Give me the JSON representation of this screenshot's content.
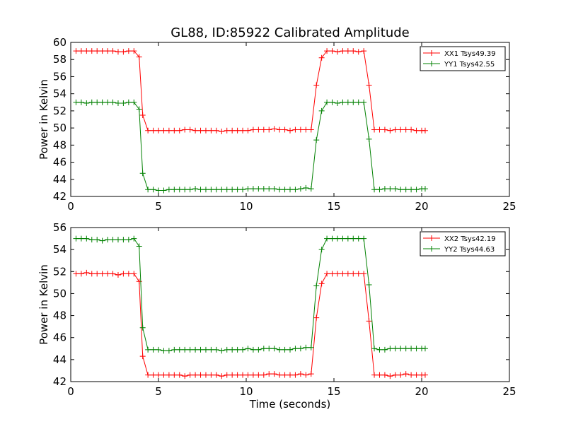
{
  "chart_data": [
    {
      "type": "line",
      "title": "GL88, ID:85922 Calibrated Amplitude",
      "xlabel": "",
      "ylabel": "Power in Kelvin",
      "xlim": [
        0,
        25
      ],
      "ylim": [
        42,
        60
      ],
      "xticks": [
        0,
        5,
        10,
        15,
        20,
        25
      ],
      "yticks": [
        42,
        44,
        46,
        48,
        50,
        52,
        54,
        56,
        58,
        60
      ],
      "legend": "top-right",
      "grid": false,
      "series": [
        {
          "name": "XX1 Tsys49.39",
          "color": "#ff0000",
          "x": [
            0.3,
            0.6,
            0.9,
            1.2,
            1.5,
            1.8,
            2.1,
            2.4,
            2.7,
            3.0,
            3.3,
            3.6,
            3.9,
            4.1,
            4.4,
            4.7,
            5.0,
            5.3,
            5.6,
            5.9,
            6.2,
            6.5,
            6.8,
            7.1,
            7.4,
            7.7,
            8.0,
            8.3,
            8.6,
            8.9,
            9.2,
            9.5,
            9.8,
            10.1,
            10.4,
            10.7,
            11.0,
            11.3,
            11.6,
            11.9,
            12.2,
            12.5,
            12.8,
            13.1,
            13.4,
            13.7,
            14.0,
            14.3,
            14.6,
            14.9,
            15.2,
            15.5,
            15.8,
            16.1,
            16.4,
            16.7,
            17.0,
            17.3,
            17.6,
            17.9,
            18.2,
            18.5,
            18.8,
            19.1,
            19.4,
            19.7,
            20.0,
            20.2
          ],
          "y": [
            59,
            59,
            59,
            59,
            59,
            59,
            59,
            59,
            58.9,
            58.9,
            59,
            59,
            58.3,
            51.5,
            49.7,
            49.7,
            49.7,
            49.7,
            49.7,
            49.7,
            49.7,
            49.8,
            49.8,
            49.7,
            49.7,
            49.7,
            49.7,
            49.7,
            49.6,
            49.7,
            49.7,
            49.7,
            49.7,
            49.7,
            49.8,
            49.8,
            49.8,
            49.8,
            49.9,
            49.8,
            49.8,
            49.7,
            49.8,
            49.8,
            49.8,
            49.8,
            55,
            58.2,
            59,
            59,
            58.9,
            59,
            59,
            59,
            58.9,
            59,
            55,
            49.8,
            49.8,
            49.8,
            49.7,
            49.8,
            49.8,
            49.8,
            49.8,
            49.7,
            49.7,
            49.7
          ]
        },
        {
          "name": "YY1 Tsys42.55",
          "color": "#008000",
          "x": [
            0.3,
            0.6,
            0.9,
            1.2,
            1.5,
            1.8,
            2.1,
            2.4,
            2.7,
            3.0,
            3.3,
            3.6,
            3.9,
            4.1,
            4.4,
            4.7,
            5.0,
            5.3,
            5.6,
            5.9,
            6.2,
            6.5,
            6.8,
            7.1,
            7.4,
            7.7,
            8.0,
            8.3,
            8.6,
            8.9,
            9.2,
            9.5,
            9.8,
            10.1,
            10.4,
            10.7,
            11.0,
            11.3,
            11.6,
            11.9,
            12.2,
            12.5,
            12.8,
            13.1,
            13.4,
            13.7,
            14.0,
            14.3,
            14.6,
            14.9,
            15.2,
            15.5,
            15.8,
            16.1,
            16.4,
            16.7,
            17.0,
            17.3,
            17.6,
            17.9,
            18.2,
            18.5,
            18.8,
            19.1,
            19.4,
            19.7,
            20.0,
            20.2
          ],
          "y": [
            53,
            53,
            52.9,
            53,
            53,
            53,
            53,
            53,
            52.9,
            52.9,
            53,
            53,
            52.2,
            44.7,
            42.8,
            42.8,
            42.7,
            42.7,
            42.8,
            42.8,
            42.8,
            42.8,
            42.8,
            42.9,
            42.8,
            42.8,
            42.8,
            42.8,
            42.8,
            42.8,
            42.8,
            42.8,
            42.8,
            42.9,
            42.9,
            42.9,
            42.9,
            42.9,
            42.9,
            42.8,
            42.8,
            42.8,
            42.8,
            42.9,
            43,
            42.9,
            48.6,
            52,
            53,
            53,
            52.9,
            53,
            53,
            53,
            53,
            53,
            48.7,
            42.8,
            42.8,
            42.9,
            42.9,
            42.9,
            42.8,
            42.8,
            42.8,
            42.8,
            42.9,
            42.9
          ]
        }
      ]
    },
    {
      "type": "line",
      "title": "",
      "xlabel": "Time (seconds)",
      "ylabel": "Power in Kelvin",
      "xlim": [
        0,
        25
      ],
      "ylim": [
        42,
        56
      ],
      "xticks": [
        0,
        5,
        10,
        15,
        20,
        25
      ],
      "yticks": [
        42,
        44,
        46,
        48,
        50,
        52,
        54,
        56
      ],
      "legend": "top-right",
      "grid": false,
      "series": [
        {
          "name": "XX2 Tsys42.19",
          "color": "#ff0000",
          "x": [
            0.3,
            0.6,
            0.9,
            1.2,
            1.5,
            1.8,
            2.1,
            2.4,
            2.7,
            3.0,
            3.3,
            3.6,
            3.9,
            4.1,
            4.4,
            4.7,
            5.0,
            5.3,
            5.6,
            5.9,
            6.2,
            6.5,
            6.8,
            7.1,
            7.4,
            7.7,
            8.0,
            8.3,
            8.6,
            8.9,
            9.2,
            9.5,
            9.8,
            10.1,
            10.4,
            10.7,
            11.0,
            11.3,
            11.6,
            11.9,
            12.2,
            12.5,
            12.8,
            13.1,
            13.4,
            13.7,
            14.0,
            14.3,
            14.6,
            14.9,
            15.2,
            15.5,
            15.8,
            16.1,
            16.4,
            16.7,
            17.0,
            17.3,
            17.6,
            17.9,
            18.2,
            18.5,
            18.8,
            19.1,
            19.4,
            19.7,
            20.0,
            20.2
          ],
          "y": [
            51.8,
            51.8,
            51.9,
            51.8,
            51.8,
            51.8,
            51.8,
            51.8,
            51.7,
            51.8,
            51.8,
            51.8,
            51.1,
            44.3,
            42.6,
            42.6,
            42.6,
            42.6,
            42.6,
            42.6,
            42.6,
            42.5,
            42.6,
            42.6,
            42.6,
            42.6,
            42.6,
            42.6,
            42.5,
            42.6,
            42.6,
            42.6,
            42.6,
            42.6,
            42.6,
            42.6,
            42.6,
            42.7,
            42.7,
            42.6,
            42.6,
            42.6,
            42.6,
            42.7,
            42.6,
            42.7,
            47.8,
            50.9,
            51.8,
            51.8,
            51.8,
            51.8,
            51.8,
            51.8,
            51.8,
            51.8,
            47.5,
            42.6,
            42.6,
            42.6,
            42.5,
            42.6,
            42.6,
            42.7,
            42.6,
            42.6,
            42.6,
            42.6
          ]
        },
        {
          "name": "YY2 Tsys44.63",
          "color": "#008000",
          "x": [
            0.3,
            0.6,
            0.9,
            1.2,
            1.5,
            1.8,
            2.1,
            2.4,
            2.7,
            3.0,
            3.3,
            3.6,
            3.9,
            4.1,
            4.4,
            4.7,
            5.0,
            5.3,
            5.6,
            5.9,
            6.2,
            6.5,
            6.8,
            7.1,
            7.4,
            7.7,
            8.0,
            8.3,
            8.6,
            8.9,
            9.2,
            9.5,
            9.8,
            10.1,
            10.4,
            10.7,
            11.0,
            11.3,
            11.6,
            11.9,
            12.2,
            12.5,
            12.8,
            13.1,
            13.4,
            13.7,
            14.0,
            14.3,
            14.6,
            14.9,
            15.2,
            15.5,
            15.8,
            16.1,
            16.4,
            16.7,
            17.0,
            17.3,
            17.6,
            17.9,
            18.2,
            18.5,
            18.8,
            19.1,
            19.4,
            19.7,
            20.0,
            20.2
          ],
          "y": [
            55,
            55,
            55,
            54.9,
            54.9,
            54.8,
            54.9,
            54.9,
            54.9,
            54.9,
            54.9,
            55,
            54.3,
            46.9,
            44.9,
            44.9,
            44.9,
            44.8,
            44.8,
            44.9,
            44.9,
            44.9,
            44.9,
            44.9,
            44.9,
            44.9,
            44.9,
            44.9,
            44.8,
            44.9,
            44.9,
            44.9,
            44.9,
            45,
            44.9,
            44.9,
            45,
            45,
            45,
            44.9,
            44.9,
            44.9,
            45,
            45,
            45.1,
            45.1,
            50.7,
            54,
            55,
            55,
            55,
            55,
            55,
            55,
            55,
            55,
            50.8,
            45,
            44.9,
            44.9,
            45,
            45,
            45,
            45,
            45,
            45,
            45,
            45
          ]
        }
      ]
    }
  ]
}
